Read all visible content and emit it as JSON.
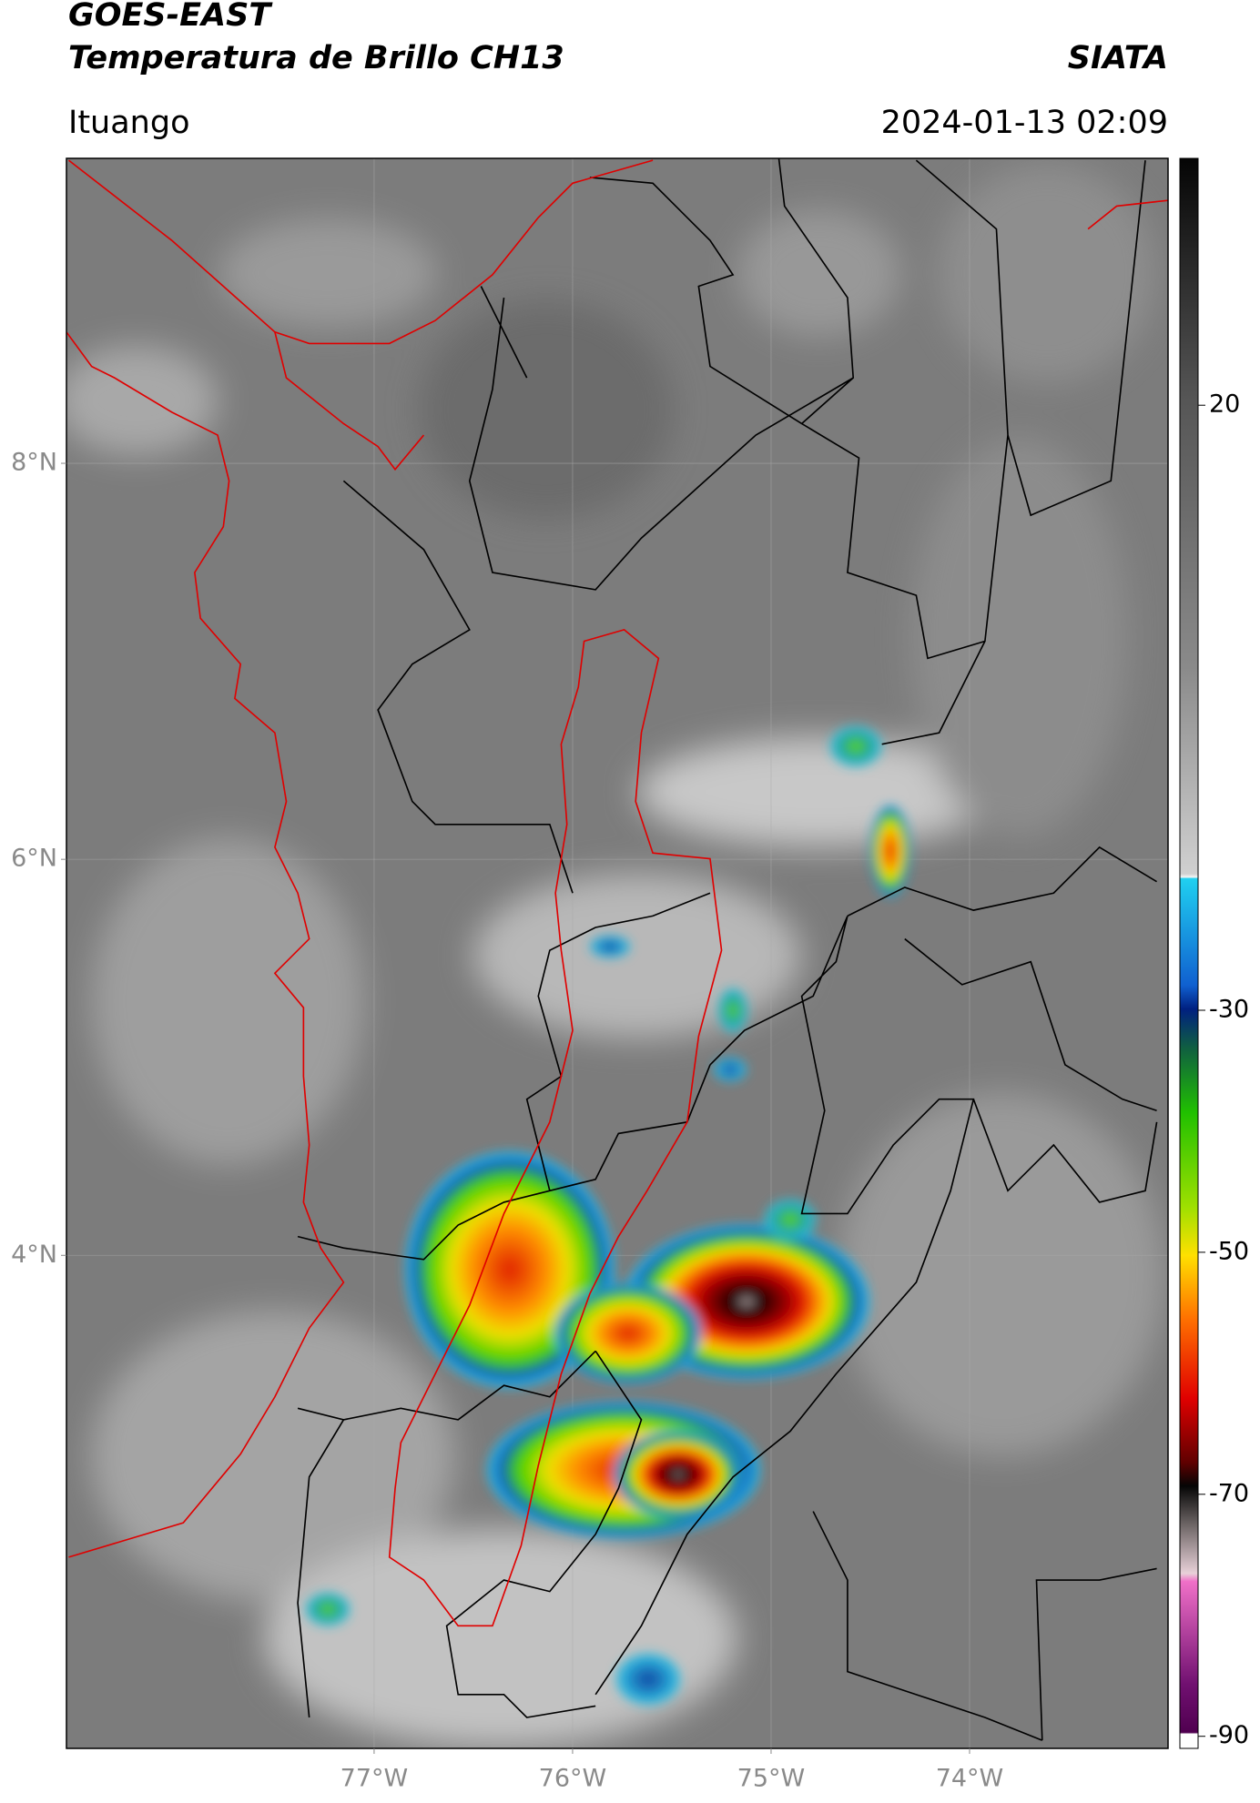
{
  "header": {
    "title": "GOES-EAST",
    "subtitle": "Temperatura de Brillo CH13",
    "brand": "SIATA",
    "location": "Ituango",
    "datetime": "2024-01-13 02:09"
  },
  "map": {
    "xlim": [
      -78.55,
      -73.0
    ],
    "ylim": [
      1.51,
      9.54
    ],
    "grid": true,
    "xticks": [
      {
        "value": -77,
        "label": "77°W"
      },
      {
        "value": -76,
        "label": "76°W"
      },
      {
        "value": -75,
        "label": "75°W"
      },
      {
        "value": -74,
        "label": "74°W"
      }
    ],
    "yticks": [
      {
        "value": 8,
        "label": "8°N"
      },
      {
        "value": 6,
        "label": "6°N"
      },
      {
        "value": 4,
        "label": "4°N"
      }
    ]
  },
  "colorbar": {
    "clim": [
      -91,
      40.4
    ],
    "ticks": [
      20,
      -30,
      -50,
      -70,
      -90
    ]
  }
}
